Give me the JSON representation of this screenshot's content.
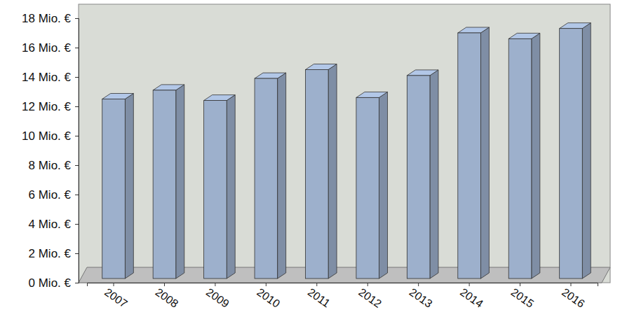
{
  "chart_data": {
    "type": "bar",
    "categories": [
      "2007",
      "2008",
      "2009",
      "2010",
      "2011",
      "2012",
      "2013",
      "2014",
      "2015",
      "2016"
    ],
    "values": [
      12.5,
      13.1,
      12.4,
      13.9,
      14.5,
      12.6,
      14.1,
      17.0,
      16.6,
      17.3
    ],
    "color": "#9db0cc",
    "ylim": [
      0,
      18
    ],
    "yticks": [
      {
        "value": 0,
        "label": "0 Mio. €"
      },
      {
        "value": 2,
        "label": "2 Mio. €"
      },
      {
        "value": 4,
        "label": "4 Mio. €"
      },
      {
        "value": 6,
        "label": "6 Mio. €"
      },
      {
        "value": 8,
        "label": "8 Mio. €"
      },
      {
        "value": 10,
        "label": "10 Mio. €"
      },
      {
        "value": 12,
        "label": "12 Mio. €"
      },
      {
        "value": 14,
        "label": "14 Mio. €"
      },
      {
        "value": 16,
        "label": "16 Mio. €"
      },
      {
        "value": 18,
        "label": "18 Mio. €"
      }
    ]
  }
}
